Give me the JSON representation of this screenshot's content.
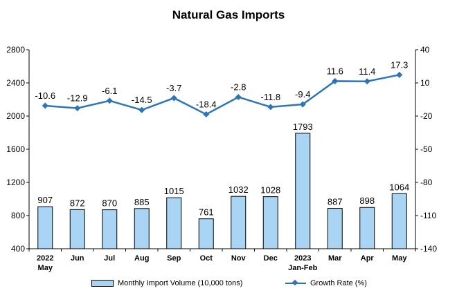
{
  "colors": {
    "bar_fill": "#a9d4f4",
    "bar_stroke": "#000000",
    "line": "#2e75b6",
    "axis": "#000000",
    "text": "#000000"
  },
  "chart_data": {
    "type": "bar",
    "title": "Natural Gas Imports",
    "categories": [
      [
        "2022",
        "May"
      ],
      [
        "Jun"
      ],
      [
        "Jul"
      ],
      [
        "Aug"
      ],
      [
        "Sep"
      ],
      [
        "Oct"
      ],
      [
        "Nov"
      ],
      [
        "Dec"
      ],
      [
        "2023",
        "Jan-Feb"
      ],
      [
        "Mar"
      ],
      [
        "Apr"
      ],
      [
        "May"
      ]
    ],
    "left_axis": {
      "min": 400,
      "max": 2800,
      "ticks": [
        400,
        800,
        1200,
        1600,
        2000,
        2400,
        2800
      ]
    },
    "right_axis": {
      "min": -140,
      "max": 40,
      "ticks": [
        -140,
        -110,
        -80,
        -50,
        -20,
        10,
        40
      ]
    },
    "series": [
      {
        "name": "Monthly Import Volume (10,000 tons)",
        "type": "bar",
        "axis": "left",
        "values": [
          907,
          872,
          870,
          885,
          1015,
          761,
          1032,
          1028,
          1793,
          887,
          898,
          1064
        ],
        "labels": [
          "907",
          "872",
          "870",
          "885",
          "1015",
          "761",
          "1032",
          "1028",
          "1793",
          "887",
          "898",
          "1064"
        ]
      },
      {
        "name": "Growth Rate (%)",
        "type": "line",
        "axis": "right",
        "values": [
          -10.6,
          -12.9,
          -6.1,
          -14.5,
          -3.7,
          -18.4,
          -2.8,
          -11.8,
          -9.4,
          11.6,
          11.4,
          17.3
        ],
        "labels": [
          "-10.6",
          "-12.9",
          "-6.1",
          "-14.5",
          "-3.7",
          "-18.4",
          "-2.8",
          "-11.8",
          "-9.4",
          "11.6",
          "11.4",
          "17.3"
        ]
      }
    ],
    "legend_position": "bottom",
    "grid": false
  }
}
